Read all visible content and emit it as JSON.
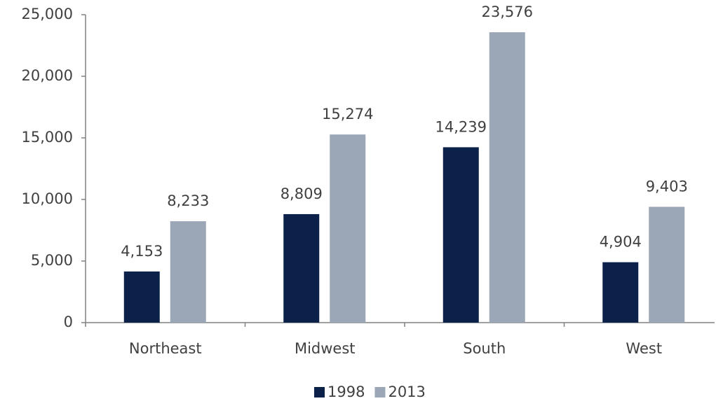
{
  "chart_data": {
    "type": "bar",
    "categories": [
      "Northeast",
      "Midwest",
      "South",
      "West"
    ],
    "series": [
      {
        "name": "1998",
        "color": "#0c2149",
        "values": [
          4153,
          8809,
          14239,
          4904
        ],
        "value_labels": [
          "4,153",
          "8,809",
          "14,239",
          "4,904"
        ]
      },
      {
        "name": "2013",
        "color": "#9ba6b6",
        "values": [
          8233,
          15274,
          23576,
          9403
        ],
        "value_labels": [
          "8,233",
          "15,274",
          "23,576",
          "9,403"
        ]
      }
    ],
    "ylim": [
      0,
      25000
    ],
    "yticks": [
      0,
      {
        "value": 5000,
        "label": "5,000"
      },
      {
        "value": 10000,
        "label": "10,000"
      },
      {
        "value": 15000,
        "label": "15,000"
      },
      {
        "value": 20000,
        "label": "20,000"
      },
      {
        "value": 25000,
        "label": "25,000"
      }
    ],
    "legend": "bottom"
  }
}
